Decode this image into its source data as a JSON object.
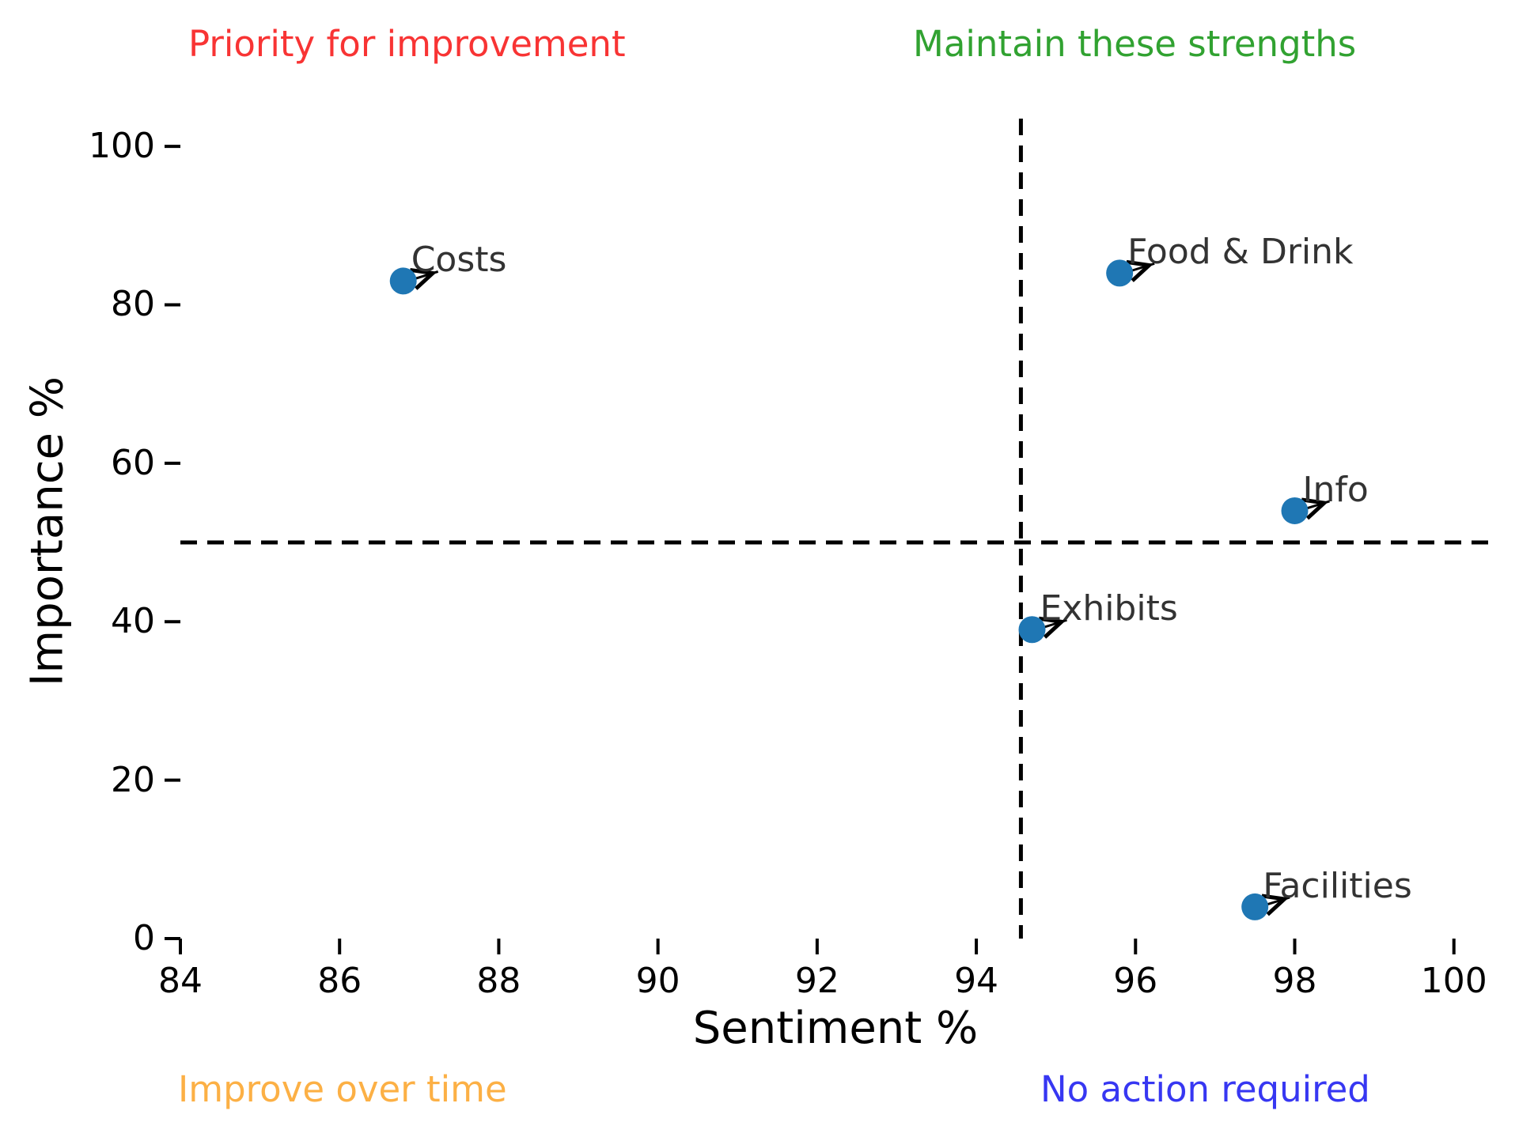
{
  "chart_data": {
    "type": "scatter",
    "xlabel": "Sentiment %",
    "ylabel": "Importance %",
    "xlim": [
      84,
      100.47
    ],
    "ylim": [
      0,
      103.5
    ],
    "xticks": [
      84,
      86,
      88,
      90,
      92,
      94,
      96,
      98,
      100
    ],
    "yticks": [
      0,
      20,
      40,
      60,
      80,
      100
    ],
    "grid": false,
    "point_color": "#1f77b4",
    "point_label_color": "#333333",
    "points": [
      {
        "label": "Costs",
        "x": 86.8,
        "y": 83
      },
      {
        "label": "Food & Drink",
        "x": 95.8,
        "y": 84
      },
      {
        "label": "Info",
        "x": 98.0,
        "y": 54
      },
      {
        "label": "Exhibits",
        "x": 94.7,
        "y": 39
      },
      {
        "label": "Facilities",
        "x": 97.5,
        "y": 4
      }
    ],
    "reference_lines": {
      "vertical_x": 94.56,
      "horizontal_y": 50,
      "style": "dashed",
      "color": "#000000"
    },
    "quadrant_labels": [
      {
        "position": "top-left",
        "text": "Priority for improvement",
        "color": "#f83434"
      },
      {
        "position": "top-right",
        "text": "Maintain these strengths",
        "color": "#31a231"
      },
      {
        "position": "bottom-left",
        "text": "Improve over time",
        "color": "#fcb045"
      },
      {
        "position": "bottom-right",
        "text": "No action required",
        "color": "#3737f2"
      }
    ]
  }
}
